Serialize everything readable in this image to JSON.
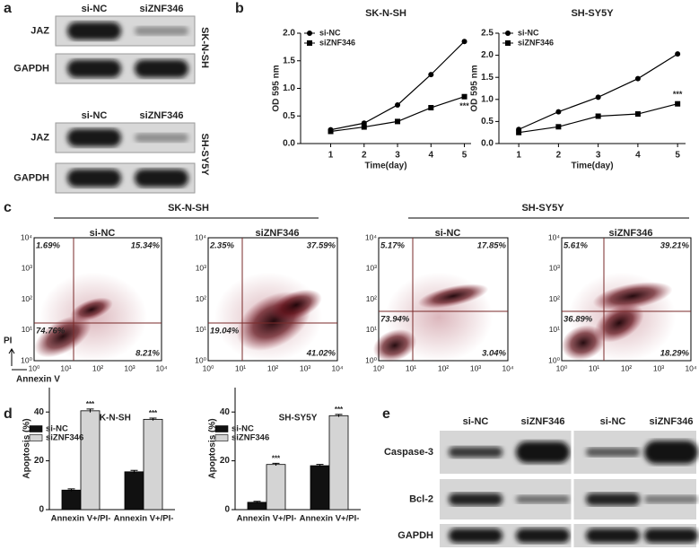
{
  "panel_labels": [
    "a",
    "b",
    "c",
    "d",
    "e"
  ],
  "blot_a": {
    "columns": [
      "si-NC",
      "siZNF346"
    ],
    "blocks": [
      {
        "cell_line": "SK-N-SH",
        "rows": [
          "JAZ",
          "GAPDH"
        ]
      },
      {
        "cell_line": "SH-SY5Y",
        "rows": [
          "JAZ",
          "GAPDH"
        ]
      }
    ]
  },
  "chart_data": [
    {
      "type": "line",
      "title": "SK-N-SH",
      "x_label": "Time(day)",
      "y_label": "OD 595 nm",
      "x": [
        1,
        2,
        3,
        4,
        5
      ],
      "xlim": [
        0.1,
        5.2
      ],
      "xticks": [
        1,
        2,
        3,
        4,
        5
      ],
      "ylim": [
        0,
        2
      ],
      "yticks": [
        {
          "value": 0,
          "label": "0.0"
        },
        0.5,
        {
          "value": 1,
          "label": "1.0"
        },
        1.5,
        {
          "value": 2,
          "label": "2.0"
        }
      ],
      "annotation": "***",
      "series": [
        {
          "name": "si-NC",
          "color": "#000000",
          "marker": "circle",
          "values": [
            0.25,
            0.37,
            0.7,
            1.25,
            1.85
          ]
        },
        {
          "name": "siZNF346",
          "color": "#000000",
          "marker": "square",
          "values": [
            0.22,
            0.3,
            0.4,
            0.65,
            0.85
          ]
        }
      ]
    },
    {
      "type": "line",
      "title": "SH-SY5Y",
      "x_label": "Time(day)",
      "y_label": "OD 595 nm",
      "x": [
        1,
        2,
        3,
        4,
        5
      ],
      "xlim": [
        0.5,
        5.2
      ],
      "xticks": [
        1,
        2,
        3,
        4,
        5
      ],
      "ylim": [
        0,
        2.5
      ],
      "yticks": [
        {
          "value": 0,
          "label": "0.0"
        },
        0.5,
        {
          "value": 1,
          "label": "1.0"
        },
        1.5,
        {
          "value": 2,
          "label": "2.0"
        },
        2.5
      ],
      "annotation": "***",
      "series": [
        {
          "name": "si-NC",
          "color": "#000000",
          "marker": "circle",
          "values": [
            0.32,
            0.72,
            1.05,
            1.47,
            2.03
          ]
        },
        {
          "name": "siZNF346",
          "color": "#000000",
          "marker": "square",
          "values": [
            0.25,
            0.38,
            0.62,
            0.67,
            0.9
          ]
        }
      ]
    },
    {
      "type": "bar",
      "title": "SK-N-SH",
      "y_label": "Apoptosis (%)",
      "categories": [
        "Annexin V+/PI-",
        "Annexin V+/PI-"
      ],
      "ylim": [
        0,
        50
      ],
      "yticks": [
        0,
        20,
        40
      ],
      "annotation": "***",
      "series": [
        {
          "name": "si-NC",
          "color": "#111111",
          "values": [
            8,
            15.5
          ],
          "errors": [
            0.5,
            0.6
          ]
        },
        {
          "name": "siZNF346",
          "color": "#d4d4d4",
          "values": [
            40.5,
            37
          ],
          "errors": [
            0.7,
            0.5
          ]
        }
      ]
    },
    {
      "type": "bar",
      "title": "SH-SY5Y",
      "y_label": "Apoptosis (%)",
      "categories": [
        "Annexin V+/PI-",
        "Annexin V+/PI-"
      ],
      "ylim": [
        0,
        50
      ],
      "yticks": [
        0,
        20,
        40
      ],
      "annotation": "***",
      "series": [
        {
          "name": "si-NC",
          "color": "#111111",
          "values": [
            3,
            18
          ],
          "errors": [
            0.4,
            0.5
          ]
        },
        {
          "name": "siZNF346",
          "color": "#d4d4d4",
          "values": [
            18.5,
            38.5
          ],
          "errors": [
            0.5,
            0.5
          ]
        }
      ]
    }
  ],
  "flow": {
    "groups": [
      "SK-N-SH",
      "SH-SY5Y"
    ],
    "x_label": "Annexin V",
    "y_label": "PI",
    "ticks": [
      "10⁰",
      "10¹",
      "10²",
      "10³",
      "10⁴"
    ],
    "plots": [
      {
        "title": "si-NC",
        "quadrants": [
          "1.69%",
          "15.34%",
          "74.76%",
          "8.21%"
        ]
      },
      {
        "title": "siZNF346",
        "quadrants": [
          "2.35%",
          "37.59%",
          "19.04%",
          "41.02%"
        ]
      },
      {
        "title": "si-NC",
        "quadrants": [
          "5.17%",
          "17.85%",
          "73.94%",
          "3.04%"
        ]
      },
      {
        "title": "siZNF346",
        "quadrants": [
          "5.61%",
          "39.21%",
          "36.89%",
          "18.29%"
        ]
      }
    ]
  },
  "blot_e": {
    "columns": [
      "si-NC",
      "siZNF346",
      "si-NC",
      "siZNF346"
    ],
    "rows": [
      "Caspase-3",
      "Bcl-2",
      "GAPDH"
    ]
  }
}
